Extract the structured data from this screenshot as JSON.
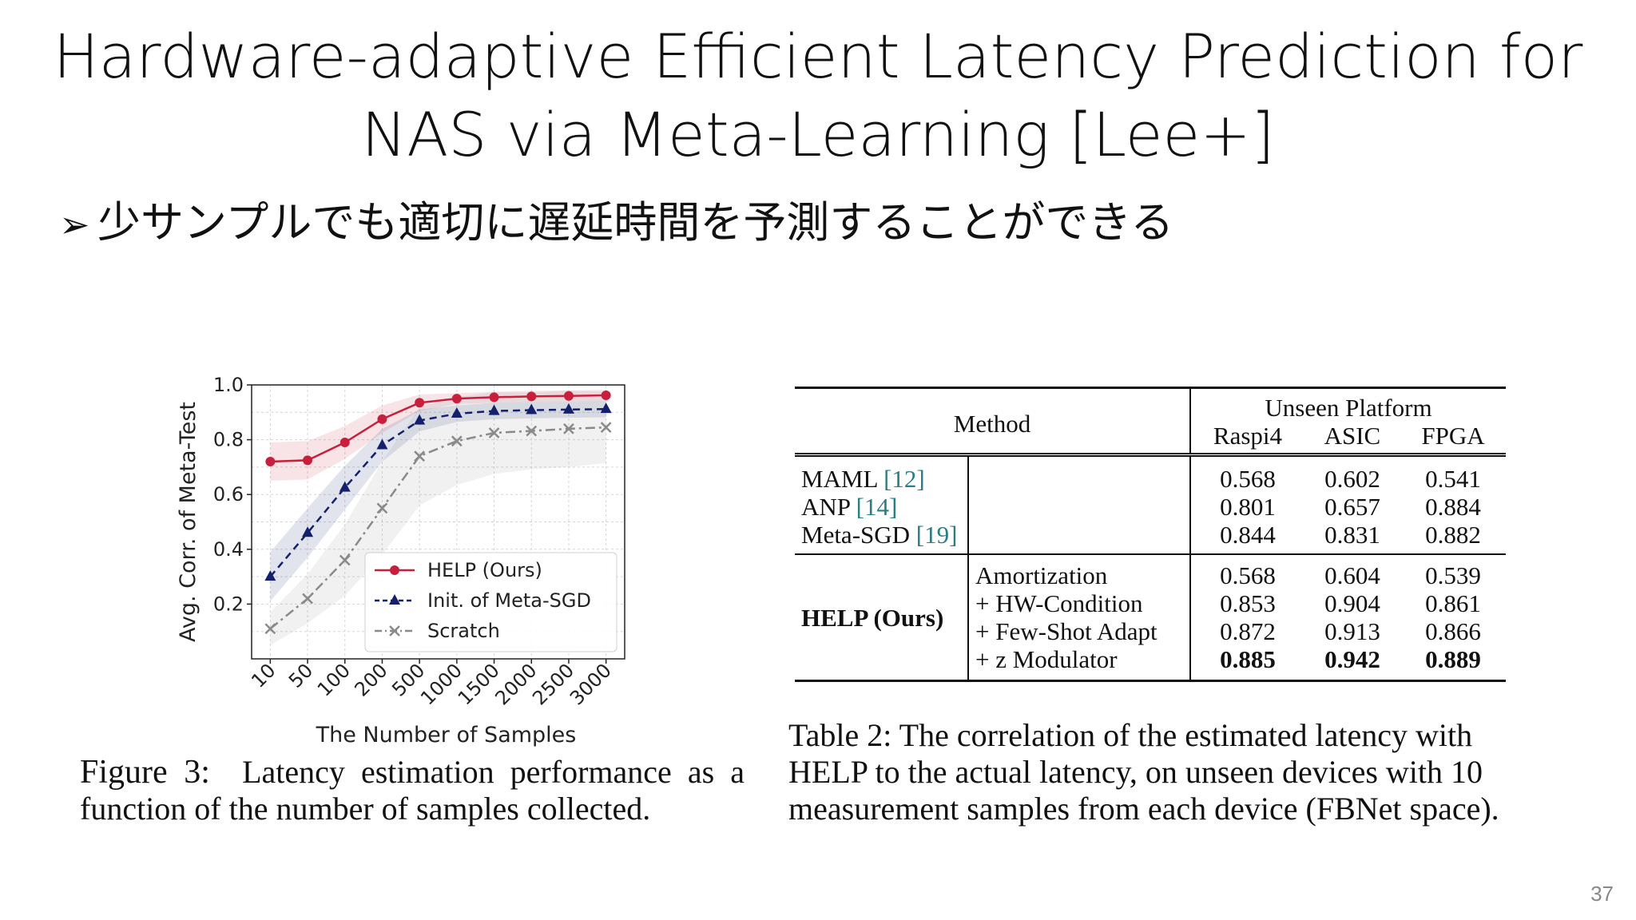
{
  "slide": {
    "title_line1": "Hardware-adaptive Efficient Latency Prediction for",
    "title_line2": "NAS via Meta-Learning [Lee+]",
    "bullet_mark": "➢",
    "bullet_text": "少サンプルでも適切に遅延時間を予測することができる",
    "page_number": "37"
  },
  "figure": {
    "caption_label": "Figure 3:",
    "caption_text": "Latency estimation performance as a function of the number of samples collected."
  },
  "chart_data": {
    "type": "line",
    "categories": [
      "10",
      "50",
      "100",
      "200",
      "500",
      "1000",
      "1500",
      "2000",
      "2500",
      "3000"
    ],
    "xlabel": "The Number of Samples",
    "ylabel": "Avg. Corr. of Meta-Test",
    "ylim": [
      0.0,
      1.0
    ],
    "yticks": [
      "0.2",
      "0.4",
      "0.6",
      "0.8",
      "1.0"
    ],
    "grid": true,
    "legend_position": "lower-right",
    "series": [
      {
        "name": "HELP (Ours)",
        "color": "#c8203c",
        "marker": "circle",
        "dash": "solid",
        "values": [
          0.72,
          0.725,
          0.79,
          0.875,
          0.935,
          0.95,
          0.955,
          0.958,
          0.96,
          0.962
        ],
        "band": [
          0.07,
          0.07,
          0.06,
          0.05,
          0.03,
          0.02,
          0.02,
          0.02,
          0.02,
          0.02
        ]
      },
      {
        "name": "Init. of Meta-SGD",
        "color": "#14206e",
        "marker": "triangle",
        "dash": "dashed",
        "values": [
          0.3,
          0.46,
          0.625,
          0.78,
          0.87,
          0.895,
          0.905,
          0.908,
          0.91,
          0.912
        ],
        "band": [
          0.09,
          0.09,
          0.08,
          0.06,
          0.04,
          0.03,
          0.03,
          0.03,
          0.03,
          0.03
        ]
      },
      {
        "name": "Scratch",
        "color": "#8a8a8a",
        "marker": "x",
        "dash": "dashdot",
        "values": [
          0.11,
          0.22,
          0.36,
          0.55,
          0.74,
          0.795,
          0.825,
          0.832,
          0.84,
          0.845
        ],
        "band": [
          0.06,
          0.09,
          0.13,
          0.17,
          0.18,
          0.16,
          0.15,
          0.14,
          0.14,
          0.13
        ]
      }
    ]
  },
  "table": {
    "headers": {
      "method": "Method",
      "unseen_platform": "Unseen Platform",
      "platforms": [
        "Raspi4",
        "ASIC",
        "FPGA"
      ]
    },
    "baselines": [
      {
        "name": "MAML",
        "cite": "[12]",
        "values": [
          "0.568",
          "0.602",
          "0.541"
        ]
      },
      {
        "name": "ANP",
        "cite": "[14]",
        "values": [
          "0.801",
          "0.657",
          "0.884"
        ]
      },
      {
        "name": "Meta-SGD",
        "cite": "[19]",
        "values": [
          "0.844",
          "0.831",
          "0.882"
        ]
      }
    ],
    "ours_label": "HELP (Ours)",
    "ours_rows": [
      {
        "component": "Amortization",
        "values": [
          "0.568",
          "0.604",
          "0.539"
        ],
        "bold": false
      },
      {
        "component": "+ HW-Condition",
        "values": [
          "0.853",
          "0.904",
          "0.861"
        ],
        "bold": false
      },
      {
        "component": "+ Few-Shot Adapt",
        "values": [
          "0.872",
          "0.913",
          "0.866"
        ],
        "bold": false
      },
      {
        "component": "+ z Modulator",
        "values": [
          "0.885",
          "0.942",
          "0.889"
        ],
        "bold": true
      }
    ],
    "caption_label": "Table 2:",
    "caption_text": "The correlation of the estimated latency with HELP to the actual latency, on unseen devices with 10 measurement samples from each device (FBNet space)."
  }
}
